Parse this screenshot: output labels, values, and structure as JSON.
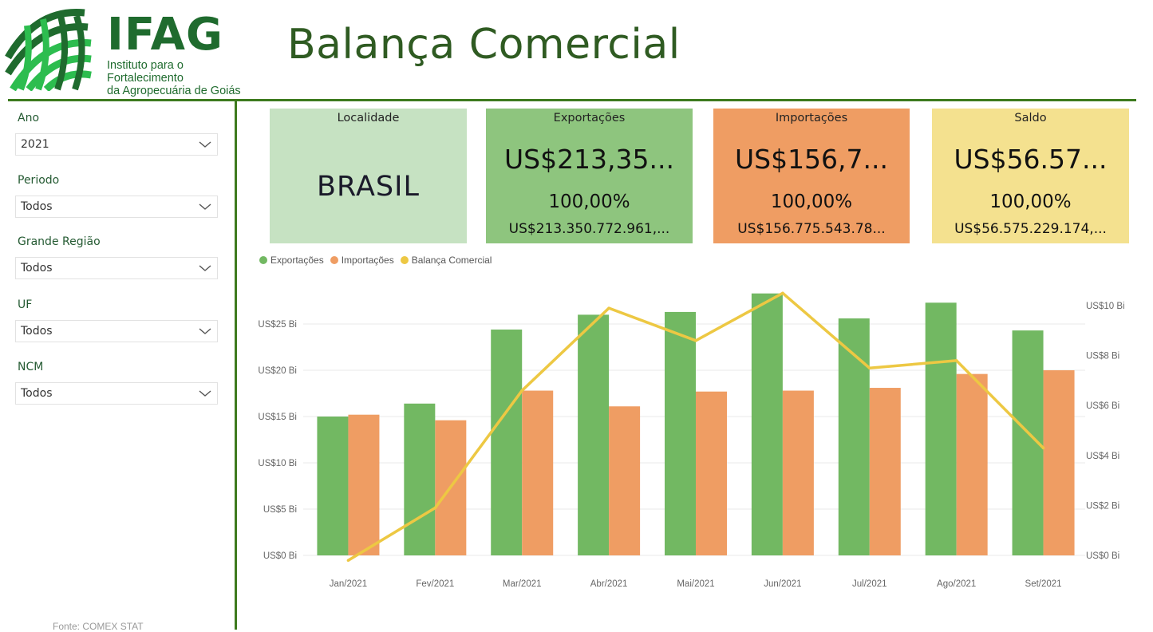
{
  "header": {
    "logo_name": "IFAG",
    "logo_subtitle_1": "Instituto para o Fortalecimento",
    "logo_subtitle_2": "da Agropecuária de Goiás",
    "title": "Balança Comercial"
  },
  "filters": [
    {
      "label": "Ano",
      "value": "2021"
    },
    {
      "label": "Periodo",
      "value": "Todos"
    },
    {
      "label": "Grande Região",
      "value": "Todos"
    },
    {
      "label": "UF",
      "value": "Todos"
    },
    {
      "label": "NCM",
      "value": "Todos"
    }
  ],
  "source": "Fonte: COMEX STAT",
  "cards": {
    "localidade": {
      "label": "Localidade",
      "value": "BRASIL",
      "color": "#c6e2c2"
    },
    "exportacoes": {
      "label": "Exportações",
      "value": "US$213,35...",
      "pct": "100,00%",
      "full": "US$213.350.772.961,...",
      "color": "#8ec57e"
    },
    "importacoes": {
      "label": "Importações",
      "value": "US$156,7...",
      "pct": "100,00%",
      "full": "US$156.775.543.78...",
      "color": "#ef9d63"
    },
    "saldo": {
      "label": "Saldo",
      "value": "US$56.57...",
      "pct": "100,00%",
      "full": "US$56.575.229.174,...",
      "color": "#f4e18f"
    }
  },
  "legend": [
    {
      "name": "Exportações",
      "color": "#72b862"
    },
    {
      "name": "Importações",
      "color": "#ef9d63"
    },
    {
      "name": "Balança Comercial",
      "color": "#edc843"
    }
  ],
  "chart_data": {
    "type": "bar",
    "categories": [
      "Jan/2021",
      "Fev/2021",
      "Mar/2021",
      "Abr/2021",
      "Mai/2021",
      "Jun/2021",
      "Jul/2021",
      "Ago/2021",
      "Set/2021"
    ],
    "series": [
      {
        "name": "Exportações",
        "type": "bar",
        "axis": "left",
        "color": "#72b862",
        "values": [
          15.0,
          16.4,
          24.4,
          26.0,
          26.3,
          28.3,
          25.6,
          27.3,
          24.3
        ]
      },
      {
        "name": "Importações",
        "type": "bar",
        "axis": "left",
        "color": "#ef9d63",
        "values": [
          15.2,
          14.6,
          17.8,
          16.1,
          17.7,
          17.8,
          18.1,
          19.6,
          20.0
        ]
      },
      {
        "name": "Balança Comercial",
        "type": "line",
        "axis": "right",
        "color": "#edc843",
        "values": [
          -0.2,
          1.9,
          6.6,
          9.9,
          8.6,
          10.5,
          7.5,
          7.8,
          4.3
        ]
      }
    ],
    "left_axis": {
      "ylim": [
        0,
        30
      ],
      "ticks": [
        0,
        5,
        10,
        15,
        20,
        25
      ],
      "tick_labels": [
        "US$0 Bi",
        "US$5 Bi",
        "US$10 Bi",
        "US$15 Bi",
        "US$20 Bi",
        "US$25 Bi"
      ]
    },
    "right_axis": {
      "ylim": [
        0,
        12
      ],
      "ticks": [
        0,
        2,
        4,
        6,
        8,
        10
      ],
      "tick_labels": [
        "US$0 Bi",
        "US$2 Bi",
        "US$4 Bi",
        "US$6 Bi",
        "US$8 Bi",
        "US$10 Bi"
      ]
    },
    "grid": true,
    "legend_position": "top-left"
  }
}
